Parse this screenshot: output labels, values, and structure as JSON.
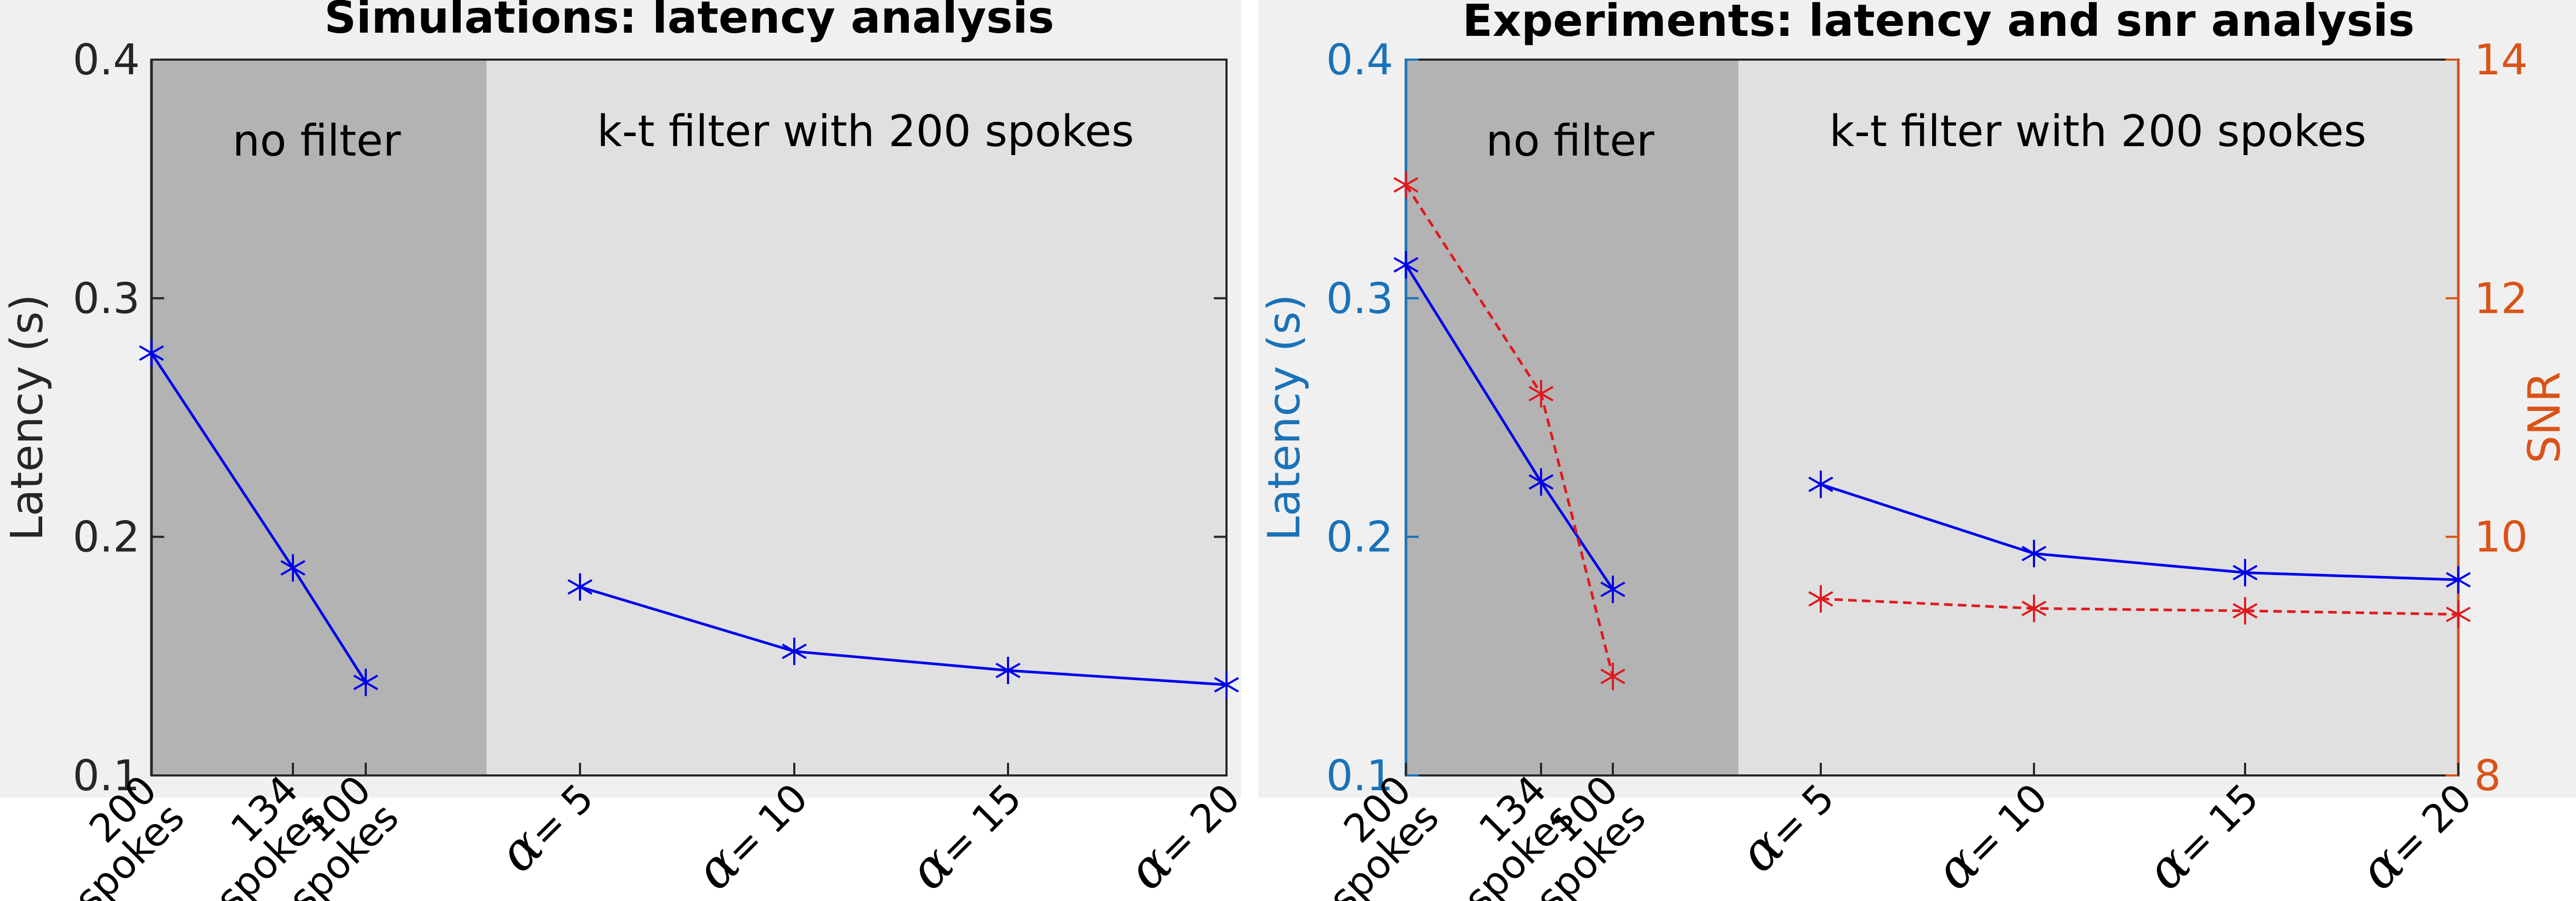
{
  "chart_data": [
    {
      "type": "line",
      "title": "Simulations: latency analysis",
      "ylabel": "Latency (s)",
      "ylim": [
        0.1,
        0.4
      ],
      "yticks": [
        "0.1",
        "0.2",
        "0.3",
        "0.4"
      ],
      "categories": [
        {
          "line1": "200",
          "line2": "spokes"
        },
        {
          "line1": "134",
          "line2": "spokes"
        },
        {
          "line1": "100",
          "line2": "spokes"
        },
        {
          "greek": "α",
          "text": "= 5"
        },
        {
          "greek": "α",
          "text": "= 10"
        },
        {
          "greek": "α",
          "text": "= 15"
        },
        {
          "greek": "α",
          "text": "= 20"
        }
      ],
      "regions": [
        {
          "label": "no filter",
          "color": "#b3b3b3"
        },
        {
          "label": "k-t filter with 200 spokes",
          "color": "#e0e0e0"
        }
      ],
      "series": [
        {
          "axis": "left",
          "color": "#0000ee",
          "style": "solid",
          "marker": "asterisk",
          "segments": [
            [
              [
                0,
                0.277
              ],
              [
                1,
                0.187
              ],
              [
                2,
                0.139
              ]
            ],
            [
              [
                3,
                0.179
              ],
              [
                4,
                0.152
              ],
              [
                5,
                0.144
              ],
              [
                6,
                0.138
              ]
            ]
          ]
        }
      ]
    },
    {
      "type": "line",
      "title": "Experiments: latency and snr analysis",
      "ylabel": "Latency (s)",
      "ylabel_right": "SNR",
      "ylim": [
        0.1,
        0.4
      ],
      "ylim_right": [
        8,
        14
      ],
      "yticks": [
        "0.1",
        "0.2",
        "0.3",
        "0.4"
      ],
      "yticks_right": [
        "8",
        "10",
        "12",
        "14"
      ],
      "left_axis_color": "#1a72b8",
      "right_axis_color": "#d95319",
      "categories": [
        {
          "line1": "200",
          "line2": "spokes"
        },
        {
          "line1": "134",
          "line2": "spokes"
        },
        {
          "line1": "100",
          "line2": "spokes"
        },
        {
          "greek": "α",
          "text": "= 5"
        },
        {
          "greek": "α",
          "text": "= 10"
        },
        {
          "greek": "α",
          "text": "= 15"
        },
        {
          "greek": "α",
          "text": "= 20"
        }
      ],
      "regions": [
        {
          "label": "no filter",
          "color": "#b3b3b3"
        },
        {
          "label": "k-t filter with 200 spokes",
          "color": "#e0e0e0"
        }
      ],
      "series": [
        {
          "axis": "left",
          "color": "#0000ee",
          "style": "solid",
          "marker": "asterisk",
          "segments": [
            [
              [
                0,
                0.314
              ],
              [
                1,
                0.223
              ],
              [
                2,
                0.178
              ]
            ],
            [
              [
                3,
                0.222
              ],
              [
                4,
                0.193
              ],
              [
                5,
                0.185
              ],
              [
                6,
                0.182
              ]
            ]
          ]
        },
        {
          "axis": "right",
          "color": "#e0191e",
          "style": "dashed",
          "marker": "asterisk",
          "segments": [
            [
              [
                0,
                12.95
              ],
              [
                1,
                11.2
              ],
              [
                2,
                8.83
              ]
            ],
            [
              [
                3,
                9.48
              ],
              [
                4,
                9.4
              ],
              [
                5,
                9.38
              ],
              [
                6,
                9.35
              ]
            ]
          ]
        }
      ]
    }
  ]
}
